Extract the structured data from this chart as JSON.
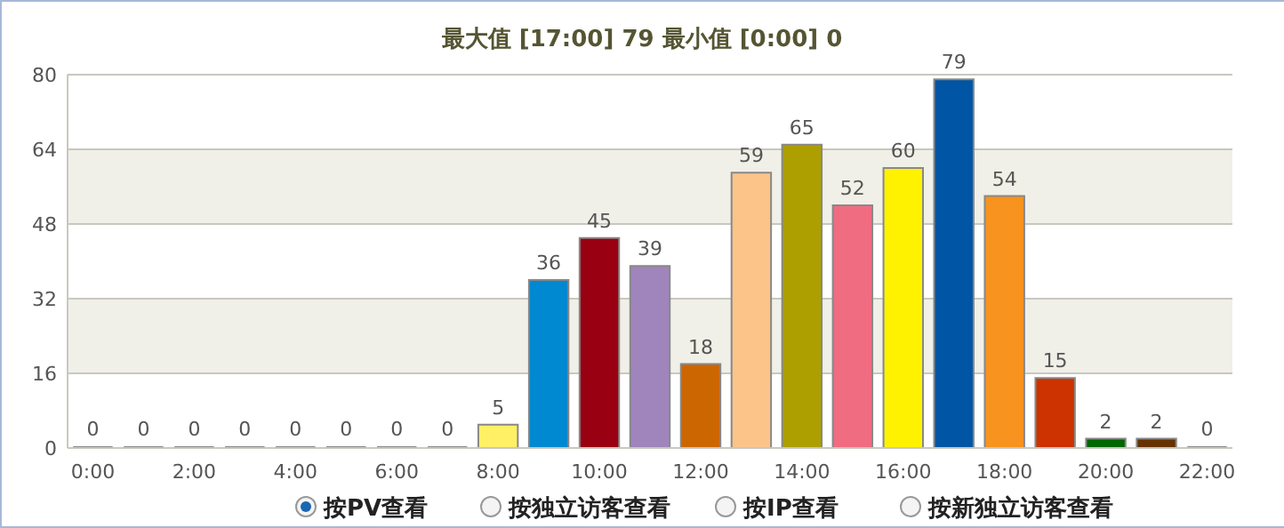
{
  "chart_data": {
    "type": "bar",
    "title": "最大值 [17:00]  79   最小值 [0:00]  0",
    "categories": [
      "0:00",
      null,
      "2:00",
      null,
      "4:00",
      null,
      "6:00",
      null,
      "8:00",
      null,
      "10:00",
      null,
      "12:00",
      null,
      "14:00",
      null,
      "16:00",
      null,
      "18:00",
      null,
      "20:00",
      null,
      "22:00"
    ],
    "values": [
      0,
      0,
      0,
      0,
      0,
      0,
      0,
      0,
      5,
      36,
      45,
      39,
      18,
      59,
      65,
      52,
      60,
      79,
      54,
      15,
      2,
      2,
      0
    ],
    "colors": [
      "#888888",
      "#888888",
      "#888888",
      "#888888",
      "#888888",
      "#888888",
      "#888888",
      "#888888",
      "#fff066",
      "#0088d0",
      "#990011",
      "#a084bc",
      "#cc6600",
      "#fcc488",
      "#ad9f00",
      "#f06c80",
      "#fff200",
      "#0055a4",
      "#f7931e",
      "#cc3300",
      "#006600",
      "#663300",
      "#888888"
    ],
    "ylim": [
      0,
      80
    ],
    "yticks": [
      0,
      16,
      32,
      48,
      64,
      80
    ],
    "grid": "y",
    "data_labels": true,
    "bands": [
      {
        "axis": "y",
        "from": 16,
        "to": 32,
        "color": "#f0f0e8"
      },
      {
        "axis": "y",
        "from": 48,
        "to": 64,
        "color": "#f0f0e8"
      }
    ],
    "annotations": [
      "按PV查看",
      "按独立访客查看",
      "按IP查看",
      "按新独立访客查看"
    ]
  }
}
